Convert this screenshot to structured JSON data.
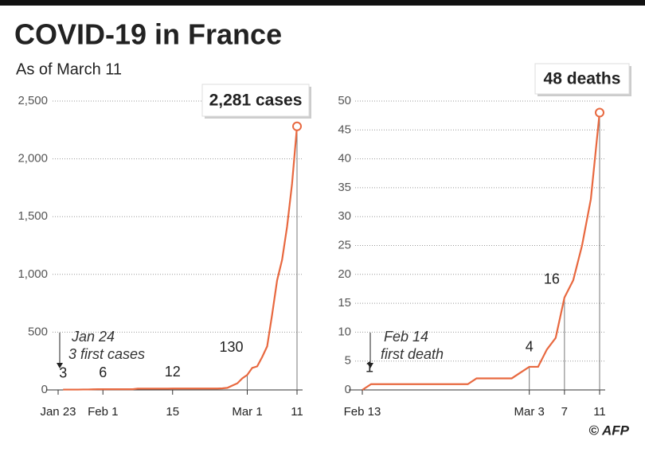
{
  "title": "COVID-19 in France",
  "subtitle": "As of March 11",
  "credit": "© AFP",
  "chart_data": [
    {
      "type": "line",
      "color": "#e8683f",
      "grid": true,
      "categories": [
        "Jan 23",
        null,
        null,
        null,
        null,
        null,
        null,
        null,
        null,
        "Feb 1",
        null,
        null,
        null,
        null,
        null,
        null,
        null,
        null,
        null,
        null,
        null,
        null,
        null,
        "15",
        null,
        null,
        null,
        null,
        null,
        null,
        null,
        null,
        null,
        null,
        null,
        null,
        null,
        null,
        "Mar 1",
        null,
        null,
        null,
        null,
        null,
        null,
        null,
        null,
        null,
        "11"
      ],
      "values": [
        null,
        3,
        3,
        3,
        3,
        4,
        4,
        5,
        6,
        6,
        6,
        6,
        6,
        6,
        6,
        6,
        11,
        11,
        11,
        11,
        11,
        11,
        11,
        12,
        12,
        12,
        12,
        12,
        12,
        12,
        12,
        12,
        12,
        14,
        18,
        38,
        57,
        100,
        130,
        191,
        204,
        285,
        377,
        653,
        949,
        1126,
        1412,
        1784,
        2281
      ],
      "value_labels": [
        null,
        "3",
        null,
        null,
        null,
        null,
        null,
        null,
        null,
        "6",
        null,
        null,
        null,
        null,
        null,
        null,
        null,
        null,
        null,
        null,
        null,
        null,
        null,
        "12",
        null,
        null,
        null,
        null,
        null,
        null,
        null,
        null,
        null,
        null,
        null,
        null,
        null,
        null,
        "130",
        null,
        null,
        null,
        null,
        null,
        null,
        null,
        null,
        null,
        "2,281 cases"
      ],
      "annotations": [
        "Jan 24",
        "3 first cases"
      ],
      "ylim": [
        0,
        2500
      ],
      "yticks": [
        0,
        500,
        {
          "value": 1000,
          "label": "1,000"
        },
        {
          "value": 1500,
          "label": "1,500"
        },
        {
          "value": 2000,
          "label": "2,000"
        },
        {
          "value": 2500,
          "label": "2,500"
        }
      ]
    },
    {
      "type": "line",
      "color": "#e8683f",
      "grid": true,
      "categories": [
        "Feb 13",
        null,
        null,
        null,
        null,
        null,
        null,
        null,
        null,
        null,
        null,
        null,
        null,
        null,
        null,
        null,
        null,
        null,
        null,
        "Mar 3",
        null,
        null,
        null,
        "7",
        null,
        null,
        null,
        "11"
      ],
      "values": [
        0,
        1,
        1,
        1,
        1,
        1,
        1,
        1,
        1,
        1,
        1,
        1,
        1,
        2,
        2,
        2,
        2,
        2,
        3,
        4,
        4,
        7,
        9,
        16,
        19,
        25,
        33,
        48
      ],
      "value_labels": [
        null,
        "1",
        null,
        null,
        null,
        null,
        null,
        null,
        null,
        null,
        null,
        null,
        null,
        null,
        null,
        null,
        null,
        null,
        null,
        "4",
        null,
        null,
        null,
        "16",
        null,
        null,
        null,
        "48 deaths"
      ],
      "annotations": [
        "Feb 14",
        "first death"
      ],
      "ylim": [
        0,
        50
      ],
      "yticks": [
        0,
        5,
        10,
        15,
        20,
        25,
        30,
        35,
        40,
        45,
        50
      ]
    }
  ]
}
